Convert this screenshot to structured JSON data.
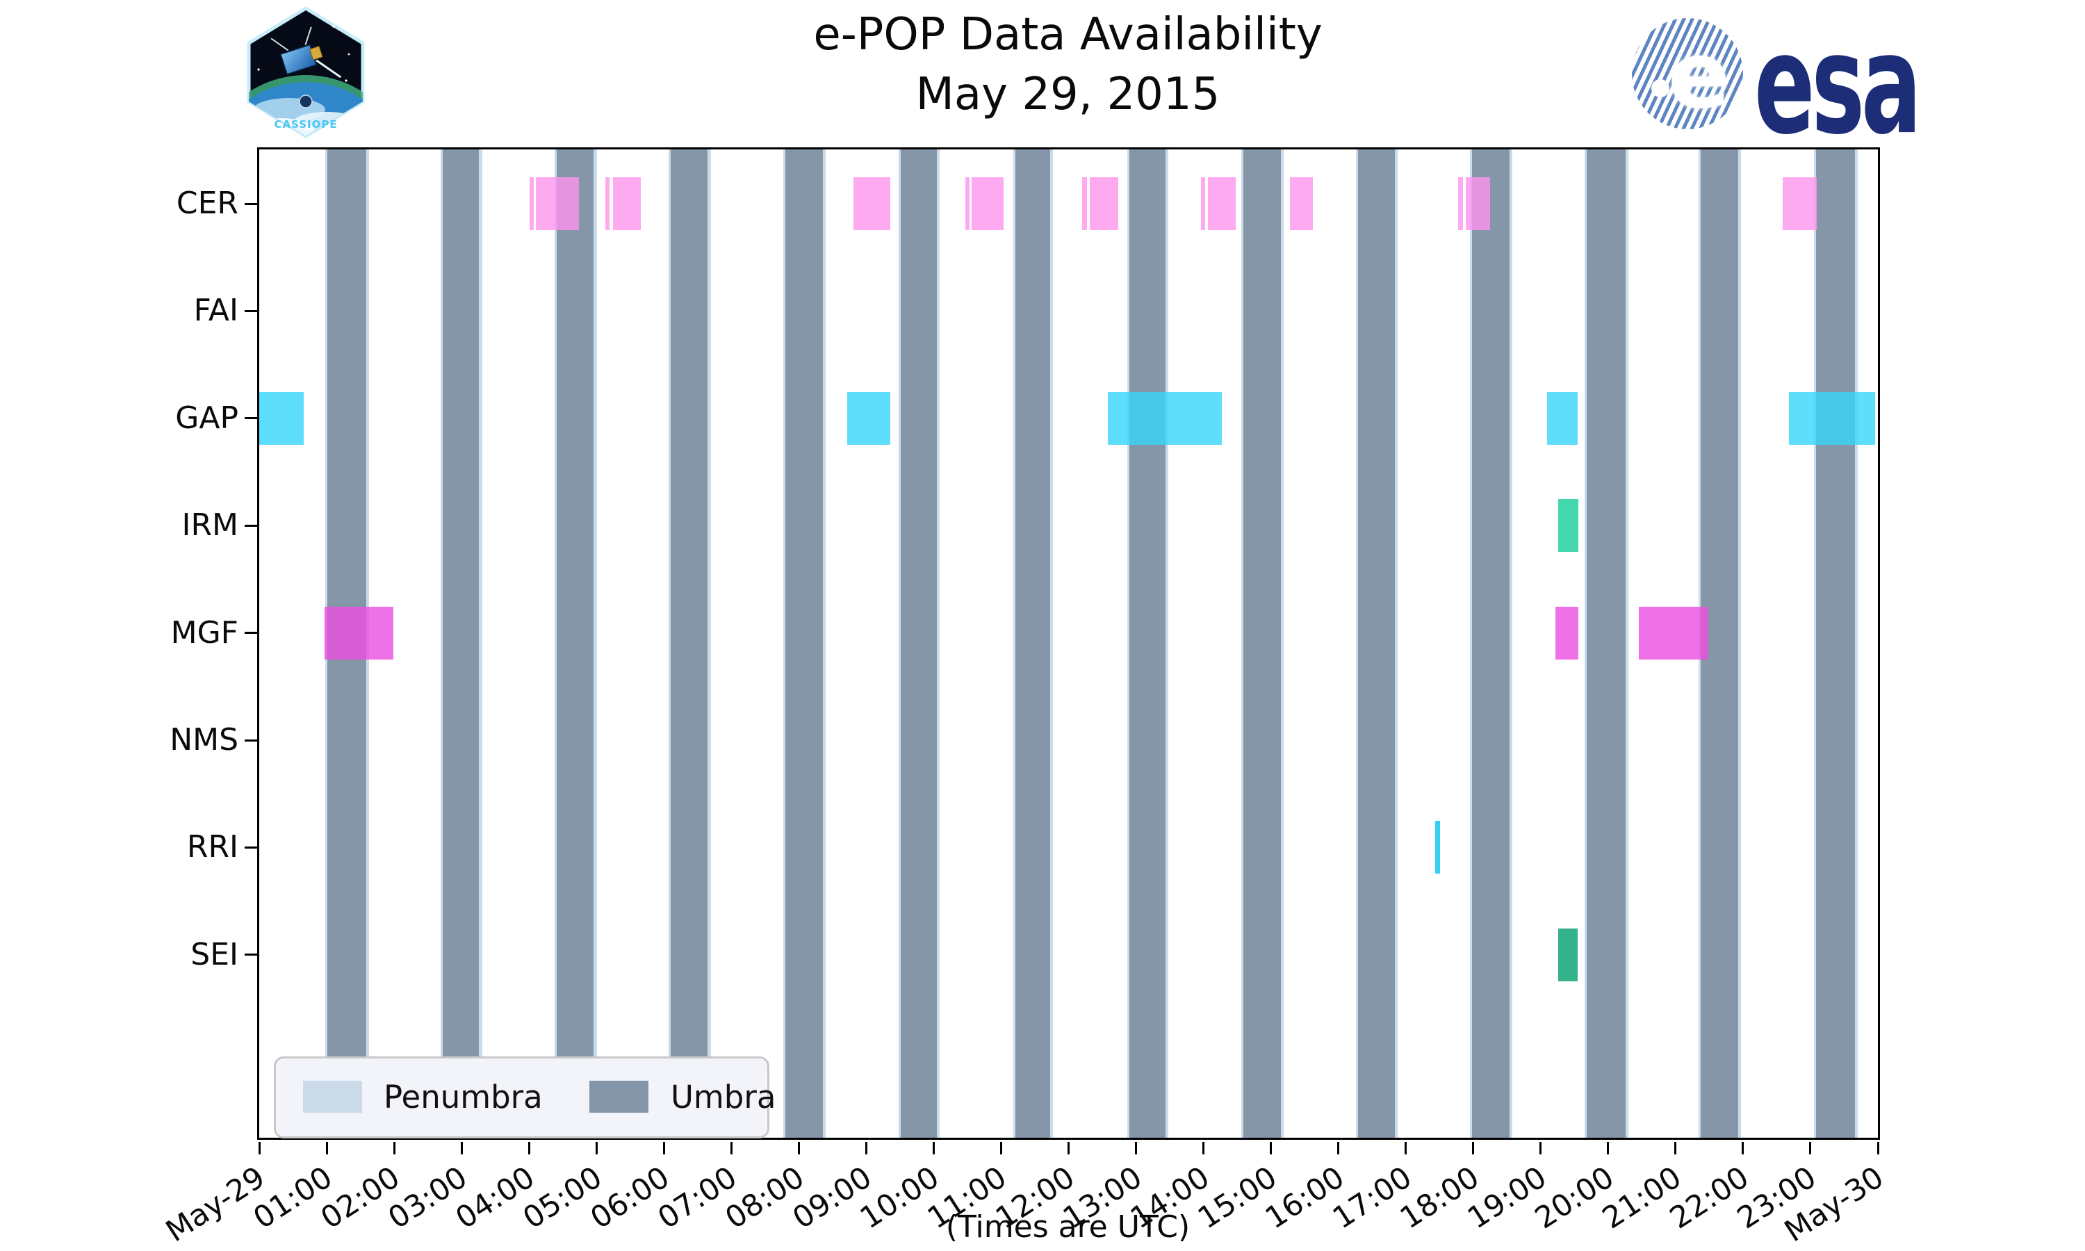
{
  "header": {
    "title_line1": "e-POP Data Availability",
    "title_line2": "May 29, 2015"
  },
  "logos": {
    "cassiope_patch_label": "CASSIOPE",
    "esa_wordmark": "esa",
    "esa_globe_letter": "e"
  },
  "legend": {
    "penumbra_label": "Penumbra",
    "umbra_label": "Umbra"
  },
  "footer": {
    "caption": "(Times are UTC)"
  },
  "colors": {
    "umbra": "#8596a8",
    "penumbra": "#ccdbea",
    "axis": "#000000",
    "background": "#ffffff",
    "esa_navy": "#1d2d77",
    "patch_cyan": "#49c6f2"
  },
  "chart_data": {
    "type": "gantt",
    "title": "e-POP Data Availability May 29, 2015",
    "xlabel": "(Times are UTC)",
    "x_axis_hours_range": [
      0,
      24
    ],
    "grid": false,
    "legend_position": "lower left",
    "x_tick_labels": [
      "May-29",
      "01:00",
      "02:00",
      "03:00",
      "04:00",
      "05:00",
      "06:00",
      "07:00",
      "08:00",
      "09:00",
      "10:00",
      "11:00",
      "12:00",
      "13:00",
      "14:00",
      "15:00",
      "16:00",
      "17:00",
      "18:00",
      "19:00",
      "20:00",
      "21:00",
      "22:00",
      "23:00",
      "May-30"
    ],
    "instruments": [
      "CER",
      "FAI",
      "GAP",
      "IRM",
      "MGF",
      "NMS",
      "RRI",
      "SEI"
    ],
    "umbra_intervals_hours": [
      [
        1.01,
        1.59
      ],
      [
        2.72,
        3.26
      ],
      [
        4.41,
        4.96
      ],
      [
        6.1,
        6.65
      ],
      [
        7.8,
        8.36
      ],
      [
        9.51,
        10.05
      ],
      [
        11.21,
        11.73
      ],
      [
        12.9,
        13.44
      ],
      [
        14.59,
        15.15
      ],
      [
        16.29,
        16.84
      ],
      [
        17.98,
        18.54
      ],
      [
        19.68,
        20.26
      ],
      [
        21.37,
        21.93
      ],
      [
        23.08,
        23.66
      ]
    ],
    "penumbra_strip_hours": 0.033,
    "series": [
      {
        "name": "CER",
        "color": "rgba(252,149,237,0.8)",
        "intervals": [
          [
            4.01,
            4.068
          ],
          [
            4.1,
            4.745
          ],
          [
            5.135,
            5.195
          ],
          [
            5.245,
            5.655
          ],
          [
            8.81,
            9.36
          ],
          [
            10.47,
            10.535
          ],
          [
            10.565,
            11.04
          ],
          [
            12.2,
            12.27
          ],
          [
            12.31,
            12.74
          ],
          [
            13.965,
            14.03
          ],
          [
            14.07,
            14.475
          ],
          [
            15.28,
            15.62
          ],
          [
            17.78,
            17.845
          ],
          [
            17.885,
            18.25
          ],
          [
            22.59,
            23.09
          ]
        ]
      },
      {
        "name": "FAI",
        "color": null,
        "intervals": []
      },
      {
        "name": "GAP",
        "color": "rgba(55,214,250,0.8)",
        "intervals": [
          [
            0.0,
            0.66
          ],
          [
            8.72,
            9.36
          ],
          [
            12.58,
            14.27
          ],
          [
            19.1,
            19.55
          ],
          [
            22.68,
            23.96
          ]
        ]
      },
      {
        "name": "IRM",
        "color": "rgba(23,205,152,0.8)",
        "intervals": [
          [
            19.26,
            19.56
          ]
        ]
      },
      {
        "name": "MGF",
        "color": "rgba(234,79,223,0.8)",
        "intervals": [
          [
            0.97,
            1.99
          ],
          [
            19.22,
            19.56
          ],
          [
            20.46,
            21.49
          ]
        ]
      },
      {
        "name": "NMS",
        "color": null,
        "intervals": []
      },
      {
        "name": "RRI",
        "color": "rgba(2,196,236,0.8)",
        "intervals": [
          [
            17.44,
            17.51
          ]
        ]
      },
      {
        "name": "SEI",
        "color": "rgba(0,159,111,0.8)",
        "intervals": [
          [
            19.26,
            19.55
          ]
        ]
      }
    ]
  }
}
